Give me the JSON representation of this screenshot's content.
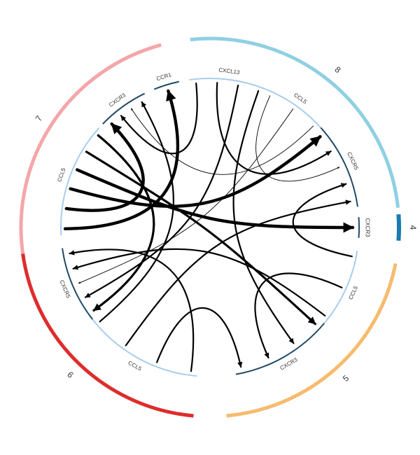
{
  "palette": {
    "c7": "#f4a6a9",
    "c8": "#8fd0e2",
    "c4": "#1a7bb0",
    "c5": "#f6bb6e",
    "c6": "#dd2d2d",
    "ligand_seg": "#a9cdee",
    "receptor_seg": "#1f4a66",
    "link": "#000000"
  },
  "clusters": [
    {
      "id": "7",
      "label": "7",
      "color_key": "c7"
    },
    {
      "id": "8",
      "label": "8",
      "color_key": "c8"
    },
    {
      "id": "4",
      "label": "4",
      "color_key": "c4"
    },
    {
      "id": "5",
      "label": "5",
      "color_key": "c5"
    },
    {
      "id": "6",
      "label": "6",
      "color_key": "c6"
    }
  ],
  "genes": [
    {
      "id": "c7-ccl5",
      "cluster": "7",
      "label": "CCL5",
      "role": "ligand"
    },
    {
      "id": "c7-cxcr3",
      "cluster": "7",
      "label": "CXCR3",
      "role": "receptor"
    },
    {
      "id": "c7-ccr1",
      "cluster": "7",
      "label": "CCR1",
      "role": "receptor"
    },
    {
      "id": "c8-cxcl13",
      "cluster": "8",
      "label": "CXCL13",
      "role": "ligand"
    },
    {
      "id": "c8-ccl5",
      "cluster": "8",
      "label": "CCL5",
      "role": "ligand"
    },
    {
      "id": "c8-cxcr5",
      "cluster": "8",
      "label": "CXCR5",
      "role": "receptor"
    },
    {
      "id": "c4-cxcr3",
      "cluster": "4",
      "label": "CXCR3",
      "role": "receptor"
    },
    {
      "id": "c5-ccl5",
      "cluster": "5",
      "label": "CCL5",
      "role": "ligand"
    },
    {
      "id": "c5-cxcr3",
      "cluster": "5",
      "label": "CXCR3",
      "role": "receptor"
    },
    {
      "id": "c6-ccl5",
      "cluster": "6",
      "label": "CCL5",
      "role": "ligand"
    },
    {
      "id": "c6-cxcr5",
      "cluster": "6",
      "label": "CXCR5",
      "role": "receptor"
    }
  ],
  "links": [
    {
      "from": "c7-ccl5",
      "to": "c7-ccr1",
      "weight": 4
    },
    {
      "from": "c7-ccl5",
      "to": "c7-cxcr3",
      "weight": 4
    },
    {
      "from": "c7-ccl5",
      "to": "c8-cxcr5",
      "weight": 4
    },
    {
      "from": "c7-ccl5",
      "to": "c4-cxcr3",
      "weight": 4
    },
    {
      "from": "c7-ccl5",
      "to": "c5-cxcr3",
      "weight": 3
    },
    {
      "from": "c7-ccl5",
      "to": "c6-cxcr5",
      "weight": 3
    },
    {
      "from": "c8-cxcl13",
      "to": "c7-cxcr3",
      "weight": 2
    },
    {
      "from": "c8-cxcl13",
      "to": "c8-cxcr5",
      "weight": 2
    },
    {
      "from": "c8-cxcl13",
      "to": "c6-cxcr5",
      "weight": 2
    },
    {
      "from": "c8-cxcl13",
      "to": "c5-cxcr3",
      "weight": 2
    },
    {
      "from": "c8-ccl5",
      "to": "c8-cxcr5",
      "weight": 1
    },
    {
      "from": "c8-ccl5",
      "to": "c6-cxcr5",
      "weight": 1
    },
    {
      "from": "c8-ccl5",
      "to": "c7-cxcr3",
      "weight": 1
    },
    {
      "from": "c5-ccl5",
      "to": "c8-cxcr5",
      "weight": 2
    },
    {
      "from": "c5-ccl5",
      "to": "c5-cxcr3",
      "weight": 2
    },
    {
      "from": "c5-ccl5",
      "to": "c6-cxcr5",
      "weight": 2
    },
    {
      "from": "c6-ccl5",
      "to": "c6-cxcr5",
      "weight": 2
    },
    {
      "from": "c6-ccl5",
      "to": "c5-cxcr3",
      "weight": 2
    },
    {
      "from": "c6-ccl5",
      "to": "c8-cxcr5",
      "weight": 2
    },
    {
      "from": "c6-ccl5",
      "to": "c7-cxcr3",
      "weight": 2
    }
  ]
}
